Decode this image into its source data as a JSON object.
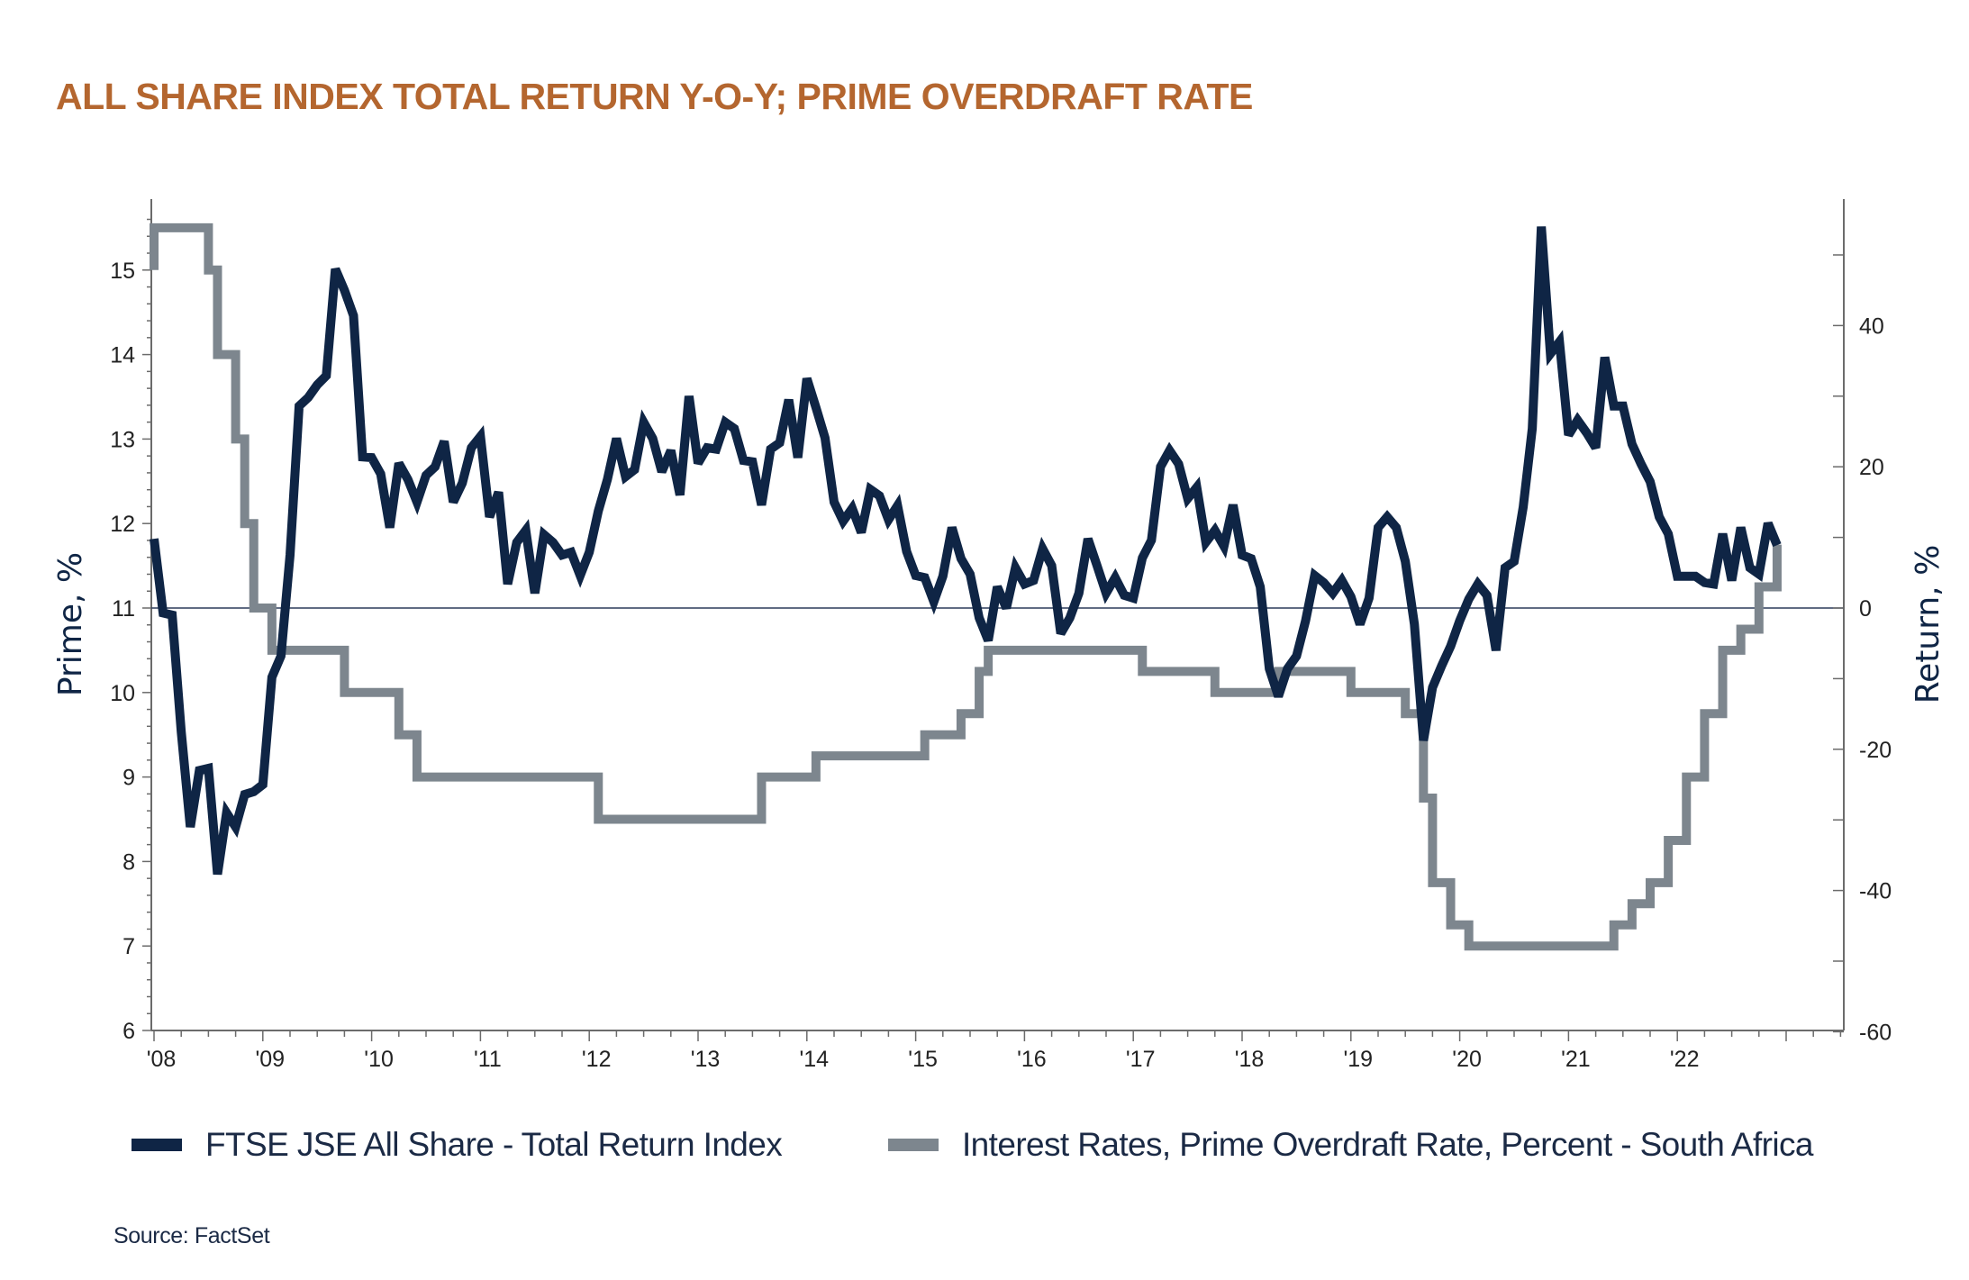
{
  "title": "ALL SHARE INDEX TOTAL RETURN Y-O-Y; PRIME OVERDRAFT RATE",
  "source": "Source: FactSet",
  "colors": {
    "title": "#b4662f",
    "return_series": "#0f2545",
    "prime_series": "#7d868e",
    "axis": "#6b6b6b",
    "text": "#1b2a45"
  },
  "legend": [
    {
      "label": "FTSE JSE All Share - Total Return Index",
      "color": "#0f2545"
    },
    {
      "label": "Interest Rates, Prime Overdraft Rate, Percent - South Africa",
      "color": "#7d868e"
    }
  ],
  "chart_data": {
    "type": "line",
    "title": "ALL SHARE INDEX TOTAL RETURN Y-O-Y; PRIME OVERDRAFT RATE",
    "xlabel": "",
    "x_tick_labels": [
      "'08",
      "'09",
      "'10",
      "'11",
      "'12",
      "'13",
      "'14",
      "'15",
      "'16",
      "'17",
      "'18",
      "'19",
      "'20",
      "'21",
      "'22"
    ],
    "x_range": [
      "2008-01",
      "2023-08"
    ],
    "left_axis": {
      "label": "Prime, %",
      "range": [
        6,
        15.7
      ],
      "ticks": [
        6,
        7,
        8,
        9,
        10,
        11,
        12,
        13,
        14,
        15
      ]
    },
    "right_axis": {
      "label": "Return, %",
      "range": [
        -60,
        57
      ],
      "ticks": [
        -60,
        -40,
        -20,
        0,
        20,
        40
      ]
    },
    "zero_line": "Return 0%",
    "grid": false,
    "legend_position": "bottom",
    "series": [
      {
        "name": "FTSE JSE All Share - Total Return Index",
        "axis": "right",
        "start": "2008-01",
        "frequency": "monthly",
        "values": [
          9.8,
          -0.7,
          -1,
          -17.5,
          -31,
          -23,
          -22.7,
          -37.7,
          -29,
          -31,
          -26.4,
          -26,
          -25,
          -9.8,
          -6.8,
          7.5,
          28.6,
          29.8,
          31.6,
          32.9,
          48,
          45,
          41.4,
          21.4,
          21.3,
          19,
          11.4,
          20.5,
          18.2,
          15,
          18.8,
          20,
          23.6,
          15,
          17.7,
          22.7,
          24.3,
          12.9,
          16.4,
          3.4,
          9.3,
          11,
          2.1,
          10.4,
          9.3,
          7.5,
          7.9,
          4.6,
          7.9,
          13.75,
          18.2,
          24,
          18.6,
          19.6,
          26.3,
          24,
          19.3,
          22.3,
          16,
          30,
          20.5,
          22.7,
          22.5,
          26.3,
          25.4,
          20.9,
          20.7,
          14.6,
          22.5,
          23.4,
          29.5,
          21.3,
          32.5,
          28.4,
          24.1,
          15,
          12.3,
          14.1,
          10.7,
          16.8,
          15.9,
          12.5,
          14.5,
          8,
          4.6,
          4.3,
          0.9,
          4.5,
          11.4,
          7,
          4.8,
          -1.4,
          -4.6,
          3,
          0,
          5.7,
          3.4,
          3.9,
          8.4,
          6,
          -3.6,
          -1.4,
          2.1,
          9.8,
          6,
          2.1,
          4.3,
          1.8,
          1.4,
          7.1,
          9.6,
          20,
          22.3,
          20.4,
          15.5,
          17.1,
          9.3,
          11,
          8.75,
          14.6,
          7.5,
          7,
          3,
          -8.6,
          -12.5,
          -8.6,
          -6.8,
          -1.8,
          4.6,
          3.6,
          2.1,
          3.9,
          1.6,
          -2.3,
          1.4,
          11.4,
          12.9,
          11.4,
          6.6,
          -2.3,
          -18.75,
          -11.25,
          -8.2,
          -5.4,
          -1.8,
          1.25,
          3.4,
          1.8,
          -6,
          5.7,
          6.6,
          14.3,
          25.4,
          54,
          36,
          37.7,
          24.5,
          26.6,
          24.8,
          22.7,
          35.5,
          28.6,
          28.6,
          23.2,
          20.4,
          17.9,
          12.9,
          10.5,
          4.5,
          4.5,
          4.5,
          3.6,
          3.4,
          10.5,
          3.9,
          11.4,
          5.7,
          4.8,
          12,
          8.9
        ]
      },
      {
        "name": "Interest Rates, Prime Overdraft Rate, Percent - South Africa",
        "axis": "left",
        "step": true,
        "points": [
          [
            "2008-01",
            15.0
          ],
          [
            "2008-01",
            15.5
          ],
          [
            "2008-07",
            15.0
          ],
          [
            "2008-08",
            14.0
          ],
          [
            "2008-10",
            13.0
          ],
          [
            "2008-11",
            12.0
          ],
          [
            "2008-12",
            11.0
          ],
          [
            "2009-02",
            10.5
          ],
          [
            "2009-10",
            10.0
          ],
          [
            "2010-04",
            9.5
          ],
          [
            "2010-06",
            9.0
          ],
          [
            "2012-02",
            8.5
          ],
          [
            "2013-08",
            9.0
          ],
          [
            "2014-02",
            9.25
          ],
          [
            "2015-02",
            9.5
          ],
          [
            "2015-06",
            9.75
          ],
          [
            "2015-08",
            10.25
          ],
          [
            "2015-09",
            10.5
          ],
          [
            "2017-02",
            10.25
          ],
          [
            "2017-10",
            10.0
          ],
          [
            "2018-05",
            10.25
          ],
          [
            "2019-01",
            10.0
          ],
          [
            "2019-07",
            9.75
          ],
          [
            "2019-09",
            8.75
          ],
          [
            "2019-10",
            7.75
          ],
          [
            "2019-12",
            7.25
          ],
          [
            "2020-02",
            7.0
          ],
          [
            "2021-06",
            7.25
          ],
          [
            "2021-08",
            7.5
          ],
          [
            "2021-10",
            7.75
          ],
          [
            "2021-12",
            8.25
          ],
          [
            "2022-02",
            9.0
          ],
          [
            "2022-04",
            9.75
          ],
          [
            "2022-06",
            10.5
          ],
          [
            "2022-08",
            10.75
          ],
          [
            "2022-10",
            11.25
          ],
          [
            "2022-12",
            11.75
          ]
        ]
      }
    ]
  }
}
